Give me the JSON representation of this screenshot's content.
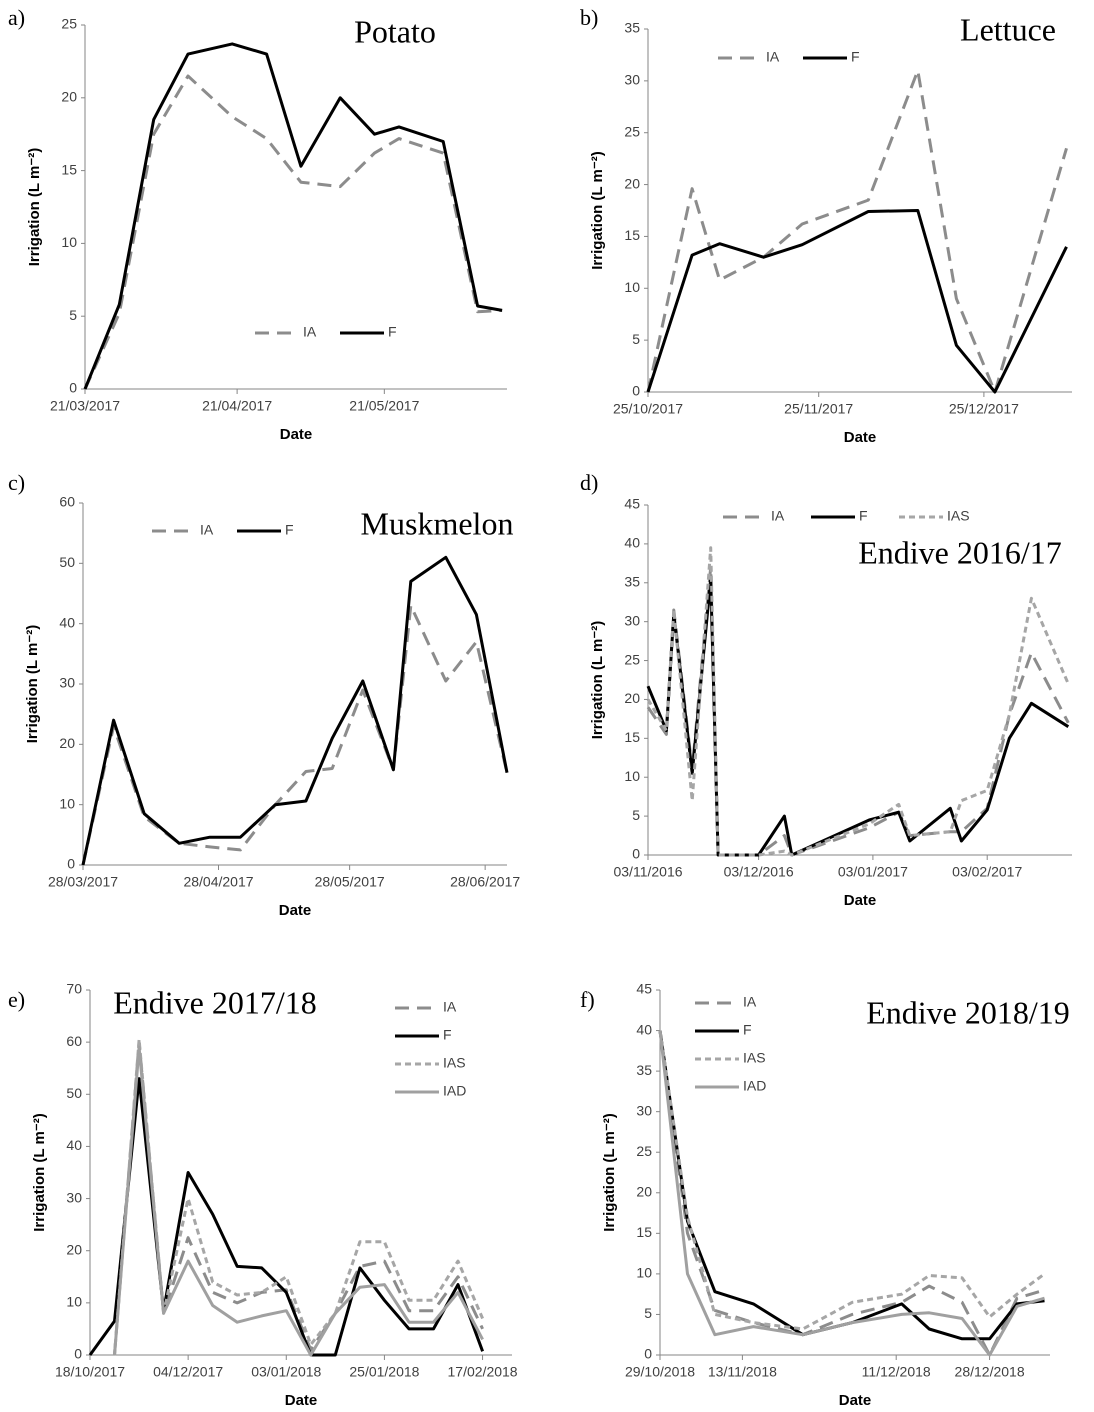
{
  "chart_data": [
    {
      "type": "line",
      "label": "a)",
      "title": "Potato",
      "xlabel": "Date",
      "ylabel": "Irrigation (L m⁻²)",
      "x": [
        "2017-03-21",
        "2017-03-28",
        "2017-04-04",
        "2017-04-11",
        "2017-04-20",
        "2017-04-27",
        "2017-05-04",
        "2017-05-12",
        "2017-05-19",
        "2017-05-24",
        "2017-06-02",
        "2017-06-09",
        "2017-06-14"
      ],
      "xlim": [
        "2017-03-21",
        "2017-06-15"
      ],
      "xticks": [
        {
          "value": "2017-03-21",
          "label": "21/03/2017"
        },
        {
          "value": "2017-04-21",
          "label": "21/04/2017"
        },
        {
          "value": "2017-05-21",
          "label": "21/05/2017"
        }
      ],
      "ylim": [
        0,
        25
      ],
      "yticks": [
        0,
        5,
        10,
        15,
        20,
        25
      ],
      "series": [
        {
          "name": "IA",
          "color": "#8c8c8c",
          "dash": "long",
          "values": [
            0,
            5.2,
            17.5,
            21.5,
            18.7,
            17.2,
            14.2,
            13.9,
            16.2,
            17.2,
            16.2,
            5.3,
            5.4
          ]
        },
        {
          "name": "F",
          "color": "#000000",
          "dash": "solid",
          "values": [
            0,
            5.8,
            18.5,
            23,
            23.7,
            23,
            15.3,
            20,
            17.5,
            18,
            17,
            5.7,
            5.4
          ]
        }
      ]
    },
    {
      "type": "line",
      "label": "b)",
      "title": "Lettuce",
      "xlabel": "Date",
      "ylabel": "Irrigation (L m⁻²)",
      "x": [
        "2017-10-25",
        "2017-11-02",
        "2017-11-07",
        "2017-11-15",
        "2017-11-22",
        "2017-12-04",
        "2017-12-13",
        "2017-12-20",
        "2017-12-27",
        "2018-01-09"
      ],
      "xlim": [
        "2017-10-25",
        "2018-01-10"
      ],
      "xticks": [
        {
          "value": "2017-10-25",
          "label": "25/10/2017"
        },
        {
          "value": "2017-11-25",
          "label": "25/11/2017"
        },
        {
          "value": "2017-12-25",
          "label": "25/12/2017"
        }
      ],
      "ylim": [
        0,
        35
      ],
      "yticks": [
        0,
        5,
        10,
        15,
        20,
        25,
        30,
        35
      ],
      "series": [
        {
          "name": "IA",
          "color": "#8c8c8c",
          "dash": "long",
          "values": [
            0,
            19.6,
            10.8,
            13,
            16.2,
            18.5,
            31,
            9,
            0,
            23.5
          ]
        },
        {
          "name": "F",
          "color": "#000000",
          "dash": "solid",
          "values": [
            0,
            13.2,
            14.3,
            13,
            14.2,
            17.4,
            17.5,
            4.5,
            0,
            14
          ]
        }
      ]
    },
    {
      "type": "line",
      "label": "c)",
      "title": "Muskmelon",
      "xlabel": "Date",
      "ylabel": "Irrigation (L m⁻²)",
      "x": [
        "2017-03-28",
        "2017-04-04",
        "2017-04-11",
        "2017-04-19",
        "2017-04-26",
        "2017-05-03",
        "2017-05-11",
        "2017-05-18",
        "2017-05-24",
        "2017-05-31",
        "2017-06-07",
        "2017-06-11",
        "2017-06-19",
        "2017-06-26",
        "2017-07-03"
      ],
      "xlim": [
        "2017-03-28",
        "2017-07-03"
      ],
      "xticks": [
        {
          "value": "2017-03-28",
          "label": "28/03/2017"
        },
        {
          "value": "2017-04-28",
          "label": "28/04/2017"
        },
        {
          "value": "2017-05-28",
          "label": "28/05/2017"
        },
        {
          "value": "2017-06-28",
          "label": "28/06/2017"
        }
      ],
      "ylim": [
        0,
        60
      ],
      "yticks": [
        0,
        10,
        20,
        30,
        40,
        50,
        60
      ],
      "series": [
        {
          "name": "IA",
          "color": "#8c8c8c",
          "dash": "long",
          "values": [
            0,
            23,
            8,
            3.6,
            3,
            2.5,
            10,
            15.5,
            16,
            29,
            15.8,
            43,
            30.5,
            37,
            15.3
          ]
        },
        {
          "name": "F",
          "color": "#000000",
          "dash": "solid",
          "values": [
            0,
            24,
            8.5,
            3.6,
            4.6,
            4.6,
            10,
            10.6,
            21,
            30.5,
            15.8,
            47,
            51,
            41.5,
            15.3
          ]
        }
      ]
    },
    {
      "type": "line",
      "label": "d)",
      "title": "Endive 2016/17",
      "xlabel": "Date",
      "ylabel": "Irrigation (L m⁻²)",
      "x": [
        "2016-11-03",
        "2016-11-08",
        "2016-11-10",
        "2016-11-15",
        "2016-11-20",
        "2016-11-22",
        "2016-12-03",
        "2016-12-10",
        "2016-12-12",
        "2017-01-02",
        "2017-01-10",
        "2017-01-13",
        "2017-01-24",
        "2017-01-27",
        "2017-02-03",
        "2017-02-09",
        "2017-02-15",
        "2017-02-25"
      ],
      "xlim": [
        "2016-11-03",
        "2017-02-26"
      ],
      "xticks": [
        {
          "value": "2016-11-03",
          "label": "03/11/2016"
        },
        {
          "value": "2016-12-03",
          "label": "03/12/2016"
        },
        {
          "value": "2017-01-03",
          "label": "03/01/2017"
        },
        {
          "value": "2017-02-03",
          "label": "03/02/2017"
        }
      ],
      "ylim": [
        0,
        45
      ],
      "yticks": [
        0,
        5,
        10,
        15,
        20,
        25,
        30,
        35,
        40,
        45
      ],
      "series": [
        {
          "name": "IA",
          "color": "#8c8c8c",
          "dash": "long",
          "values": [
            19,
            15.5,
            31.5,
            11,
            37,
            0,
            0,
            2.5,
            0,
            3.5,
            5.5,
            2.5,
            3,
            3,
            6,
            18,
            26,
            17
          ]
        },
        {
          "name": "F",
          "color": "#000000",
          "dash": "solid",
          "values": [
            21.7,
            16,
            31,
            10.5,
            35.5,
            0,
            0,
            5,
            0,
            4.5,
            5.5,
            1.8,
            6,
            1.8,
            5.8,
            15,
            19.5,
            16.5
          ]
        },
        {
          "name": "IAS",
          "color": "#a6a6a6",
          "dash": "short",
          "values": [
            20,
            16,
            31.5,
            7,
            39.5,
            0,
            0,
            0.5,
            0,
            4,
            6.5,
            2.5,
            3,
            7,
            8.3,
            18,
            33,
            22
          ]
        }
      ]
    },
    {
      "type": "line",
      "label": "e)",
      "title": "Endive 2017/18",
      "xlabel": "Date",
      "ylabel": "Irrigation (L m⁻²)",
      "categories": [
        "18/10/2017",
        null,
        null,
        null,
        "04/12/2017",
        null,
        null,
        null,
        "03/01/2018",
        null,
        null,
        null,
        "25/01/2018",
        null,
        null,
        null,
        "17/02/2018"
      ],
      "ylim": [
        0,
        70
      ],
      "yticks": [
        0,
        10,
        20,
        30,
        40,
        50,
        60,
        70
      ],
      "series": [
        {
          "name": "IA",
          "color": "#8c8c8c",
          "dash": "long",
          "values": [
            null,
            0,
            60,
            8,
            22.5,
            12,
            10,
            12,
            12.5,
            1,
            8,
            17,
            18,
            8.5,
            8.5,
            15,
            5
          ]
        },
        {
          "name": "F",
          "color": "#000000",
          "dash": "solid",
          "values": [
            0,
            6.5,
            53,
            8.5,
            35,
            27,
            17,
            16.7,
            12,
            0,
            0,
            16.7,
            10.5,
            5,
            5,
            13.5,
            0.7
          ]
        },
        {
          "name": "IAS",
          "color": "#a6a6a6",
          "dash": "short",
          "values": [
            null,
            0,
            60.5,
            8,
            30,
            14,
            11.5,
            12,
            15,
            2,
            8,
            21.7,
            21.7,
            10.5,
            10.5,
            18,
            7
          ]
        },
        {
          "name": "IAD",
          "color": "#a0a0a0",
          "dash": "solid",
          "values": [
            null,
            0,
            59,
            8,
            18,
            9.5,
            6.3,
            7.5,
            8.5,
            0,
            8,
            13,
            13.5,
            6.3,
            6.3,
            12,
            3
          ]
        }
      ]
    },
    {
      "type": "line",
      "label": "f)",
      "title": "Endive 2018/19",
      "xlabel": "Date",
      "ylabel": "Irrigation (L m⁻²)",
      "x": [
        "2018-10-29",
        "2018-11-03",
        "2018-11-08",
        "2018-11-15",
        "2018-11-24",
        "2018-12-03",
        "2018-12-12",
        "2018-12-17",
        "2018-12-23",
        "2018-12-28",
        "2019-01-02",
        "2019-01-07"
      ],
      "xlim": [
        "2018-10-29",
        "2019-01-08"
      ],
      "xticks": [
        {
          "value": "2018-10-29",
          "label": "29/10/2018"
        },
        {
          "value": "2018-11-13",
          "label": "13/11/2018"
        },
        {
          "value": "2018-12-11",
          "label": "11/12/2018"
        },
        {
          "value": "2018-12-28",
          "label": "28/12/2018"
        }
      ],
      "ylim": [
        0,
        45
      ],
      "yticks": [
        0,
        5,
        10,
        15,
        20,
        25,
        30,
        35,
        40,
        45
      ],
      "series": [
        {
          "name": "IA",
          "color": "#8c8c8c",
          "dash": "long",
          "values": [
            40,
            15,
            5.5,
            4,
            2.5,
            5,
            6.5,
            8.5,
            6.5,
            0,
            7,
            8
          ]
        },
        {
          "name": "F",
          "color": "#000000",
          "dash": "solid",
          "values": [
            40,
            16.5,
            7.8,
            6.3,
            2.5,
            4,
            6.3,
            3.2,
            2,
            2,
            6.3,
            6.7
          ]
        },
        {
          "name": "IAS",
          "color": "#a6a6a6",
          "dash": "short",
          "values": [
            40,
            17,
            5,
            4,
            3.2,
            6.5,
            7.5,
            9.8,
            9.5,
            4.7,
            7.5,
            10
          ]
        },
        {
          "name": "IAD",
          "color": "#a0a0a0",
          "dash": "solid",
          "values": [
            40,
            10,
            2.5,
            3.5,
            2.5,
            4,
            5,
            5.2,
            4.5,
            0,
            6,
            7
          ]
        }
      ]
    }
  ]
}
